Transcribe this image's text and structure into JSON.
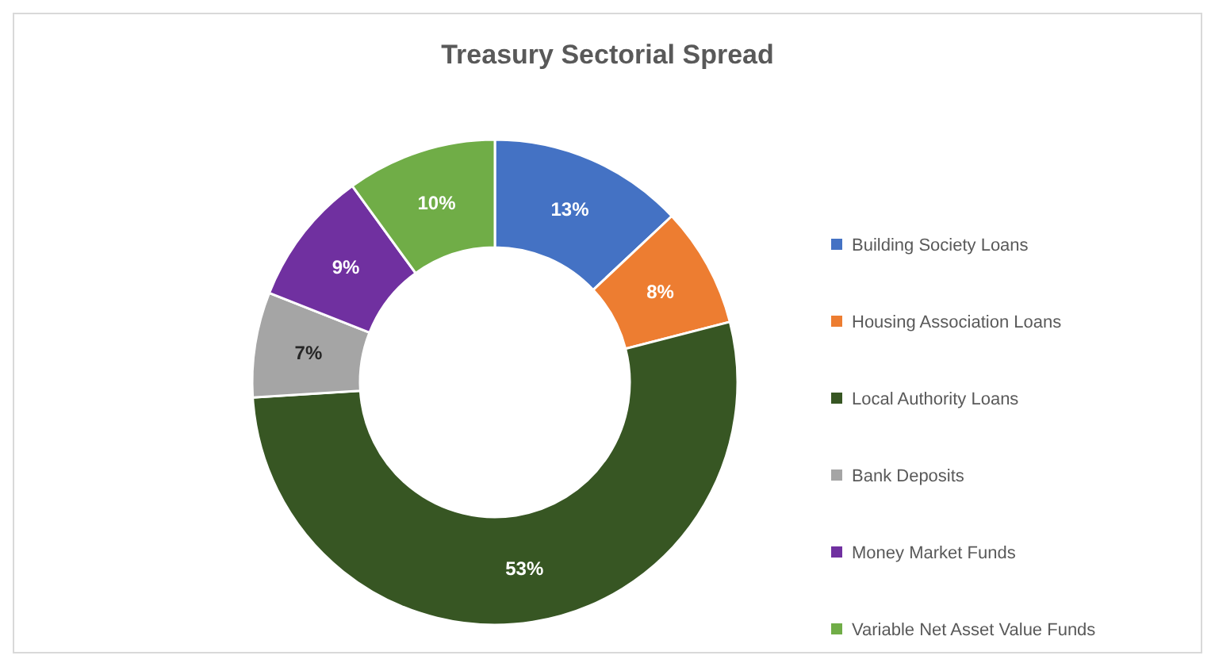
{
  "chart_data": {
    "type": "donut",
    "title": "Treasury Sectorial Spread",
    "categories": [
      "Building Society Loans",
      "Housing Association Loans",
      "Local Authority Loans",
      "Bank Deposits",
      "Money Market Funds",
      "Variable Net Asset Value Funds"
    ],
    "values": [
      13,
      8,
      53,
      7,
      9,
      10
    ],
    "value_labels": [
      "13%",
      "8%",
      "53%",
      "7%",
      "9%",
      "10%"
    ],
    "colors": [
      "#4472c4",
      "#ed7d31",
      "#375623",
      "#a5a5a5",
      "#7030a0",
      "#70ad47"
    ],
    "legend": "right"
  }
}
